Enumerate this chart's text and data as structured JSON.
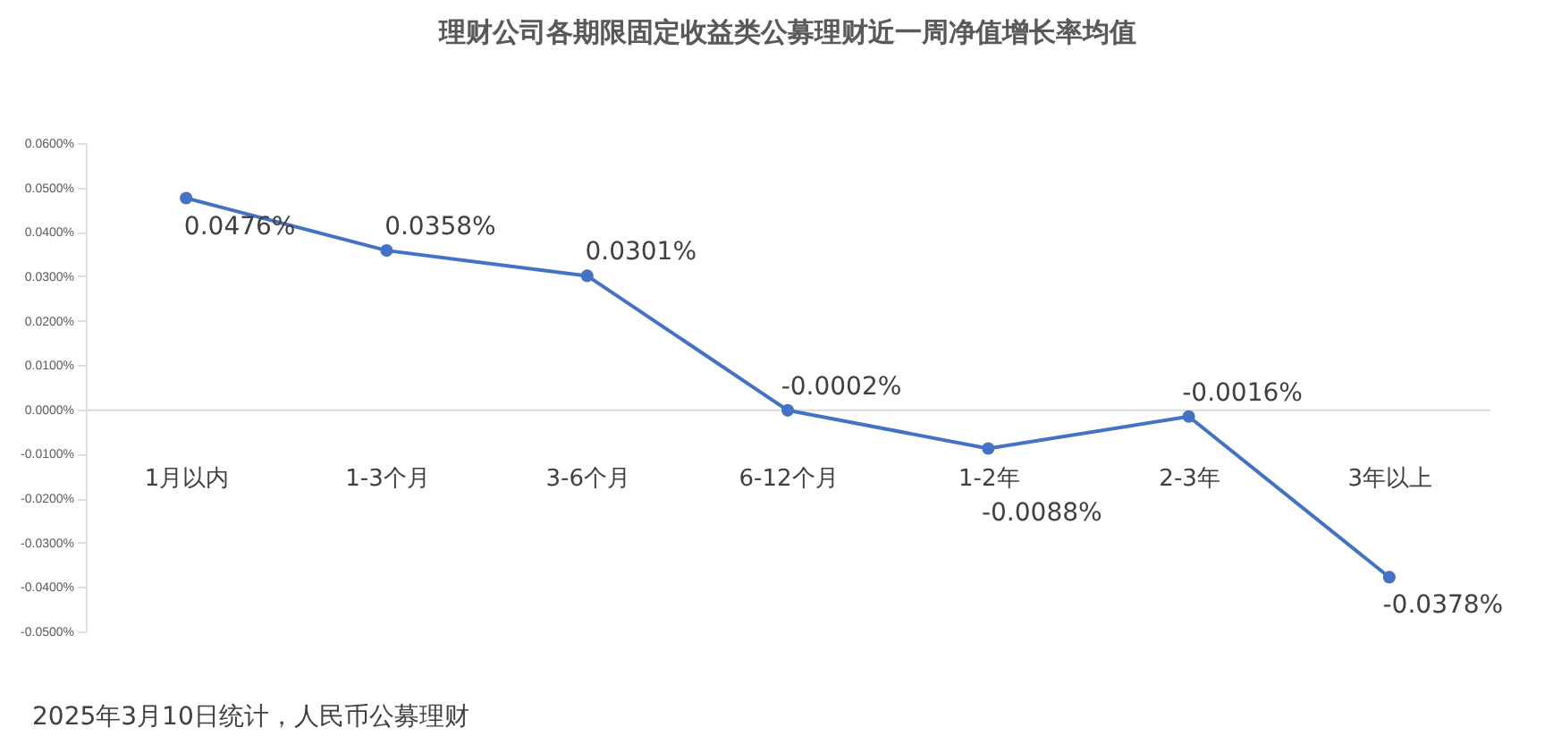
{
  "chart_data": {
    "type": "line",
    "title": "理财公司各期限固定收益类公募理财近一周净值增长率均值",
    "categories": [
      "1月以内",
      "1-3个月",
      "3-6个月",
      "6-12个月",
      "1-2年",
      "2-3年",
      "3年以上"
    ],
    "series": [
      {
        "color": "#4472c4",
        "values": [
          0.0476,
          0.0358,
          0.0301,
          -0.0002,
          -0.0088,
          -0.0016,
          -0.0378
        ],
        "value_labels": [
          "0.0476%",
          "0.0358%",
          "0.0301%",
          "-0.0002%",
          "-0.0088%",
          "-0.0016%",
          "-0.0378%"
        ]
      }
    ],
    "ylim": [
      -0.05,
      0.06
    ],
    "yticks": [
      {
        "value": 0.06,
        "label": "0.0600%"
      },
      {
        "value": 0.05,
        "label": "0.0500%"
      },
      {
        "value": 0.04,
        "label": "0.0400%"
      },
      {
        "value": 0.03,
        "label": "0.0300%"
      },
      {
        "value": 0.02,
        "label": "0.0200%"
      },
      {
        "value": 0.01,
        "label": "0.0100%"
      },
      {
        "value": 0,
        "label": "0.0000%"
      },
      {
        "value": -0.01,
        "label": "-0.0100%"
      },
      {
        "value": -0.02,
        "label": "-0.0200%"
      },
      {
        "value": -0.03,
        "label": "-0.0300%"
      },
      {
        "value": -0.04,
        "label": "-0.0400%"
      },
      {
        "value": -0.05,
        "label": "-0.0500%"
      }
    ],
    "grid": false,
    "marker": "circle",
    "line_style": "solid",
    "annotations": [
      "2025年3月10日统计，人民币公募理财"
    ]
  }
}
